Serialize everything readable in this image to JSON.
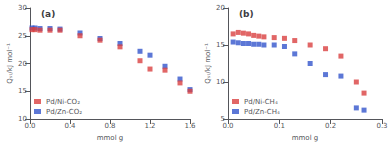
{
  "chart_data": [
    {
      "type": "scatter",
      "title": "(a)",
      "xlabel": "mmol g",
      "ylabel": "Qₛₜ/kJ mol⁻¹",
      "xlim": [
        0.0,
        1.6
      ],
      "ylim": [
        10,
        30
      ],
      "xticks": [
        {
          "value": 0.0,
          "label": "0.0"
        },
        0.4,
        0.8,
        1.2,
        1.6
      ],
      "yticks": [
        10,
        15,
        20,
        25,
        30
      ],
      "grid": false,
      "legend": "lower left",
      "marker": "square",
      "series": [
        {
          "name": "Pd/Ni-CO₂",
          "color": "#d94040",
          "x": [
            0.02,
            0.05,
            0.1,
            0.2,
            0.3,
            0.5,
            0.7,
            0.9,
            1.1,
            1.2,
            1.35,
            1.5,
            1.6
          ],
          "values": [
            26.1,
            26.1,
            26.0,
            26.0,
            26.0,
            25.0,
            24.2,
            23.0,
            20.5,
            19.0,
            18.8,
            16.5,
            15.0
          ]
        },
        {
          "name": "Pd/Zn-CO₂",
          "color": "#3355cc",
          "x": [
            0.02,
            0.05,
            0.1,
            0.2,
            0.3,
            0.5,
            0.7,
            0.9,
            1.1,
            1.2,
            1.35,
            1.5,
            1.6
          ],
          "values": [
            26.4,
            26.4,
            26.3,
            26.3,
            26.2,
            25.5,
            24.5,
            23.6,
            22.2,
            21.5,
            19.5,
            17.2,
            15.3
          ]
        }
      ]
    },
    {
      "type": "scatter",
      "title": "(b)",
      "xlabel": "mmol g",
      "ylabel": "Qₛₜ/kJ mol⁻¹",
      "xlim": [
        0.0,
        0.3
      ],
      "ylim": [
        5,
        20
      ],
      "xticks": [
        {
          "value": 0.0,
          "label": "0.0"
        },
        0.1,
        0.2,
        0.3
      ],
      "yticks": [
        5,
        10,
        15,
        20
      ],
      "grid": false,
      "legend": "lower left",
      "marker": "square",
      "series": [
        {
          "name": "Pd/Ni-CH₄",
          "color": "#d94040",
          "x": [
            0.01,
            0.02,
            0.03,
            0.04,
            0.05,
            0.06,
            0.07,
            0.09,
            0.11,
            0.13,
            0.16,
            0.19,
            0.22,
            0.25,
            0.265
          ],
          "values": [
            16.5,
            16.7,
            16.6,
            16.5,
            16.3,
            16.2,
            16.1,
            16.0,
            15.9,
            15.6,
            15.0,
            14.5,
            13.5,
            10.0,
            8.5
          ]
        },
        {
          "name": "Pd/Zn-CH₄",
          "color": "#3355cc",
          "x": [
            0.01,
            0.02,
            0.03,
            0.04,
            0.05,
            0.06,
            0.07,
            0.09,
            0.11,
            0.13,
            0.16,
            0.19,
            0.22,
            0.25,
            0.265
          ],
          "values": [
            15.4,
            15.3,
            15.2,
            15.2,
            15.1,
            15.1,
            15.0,
            15.0,
            14.8,
            13.8,
            12.5,
            11.0,
            10.8,
            6.5,
            6.2
          ]
        }
      ]
    }
  ]
}
